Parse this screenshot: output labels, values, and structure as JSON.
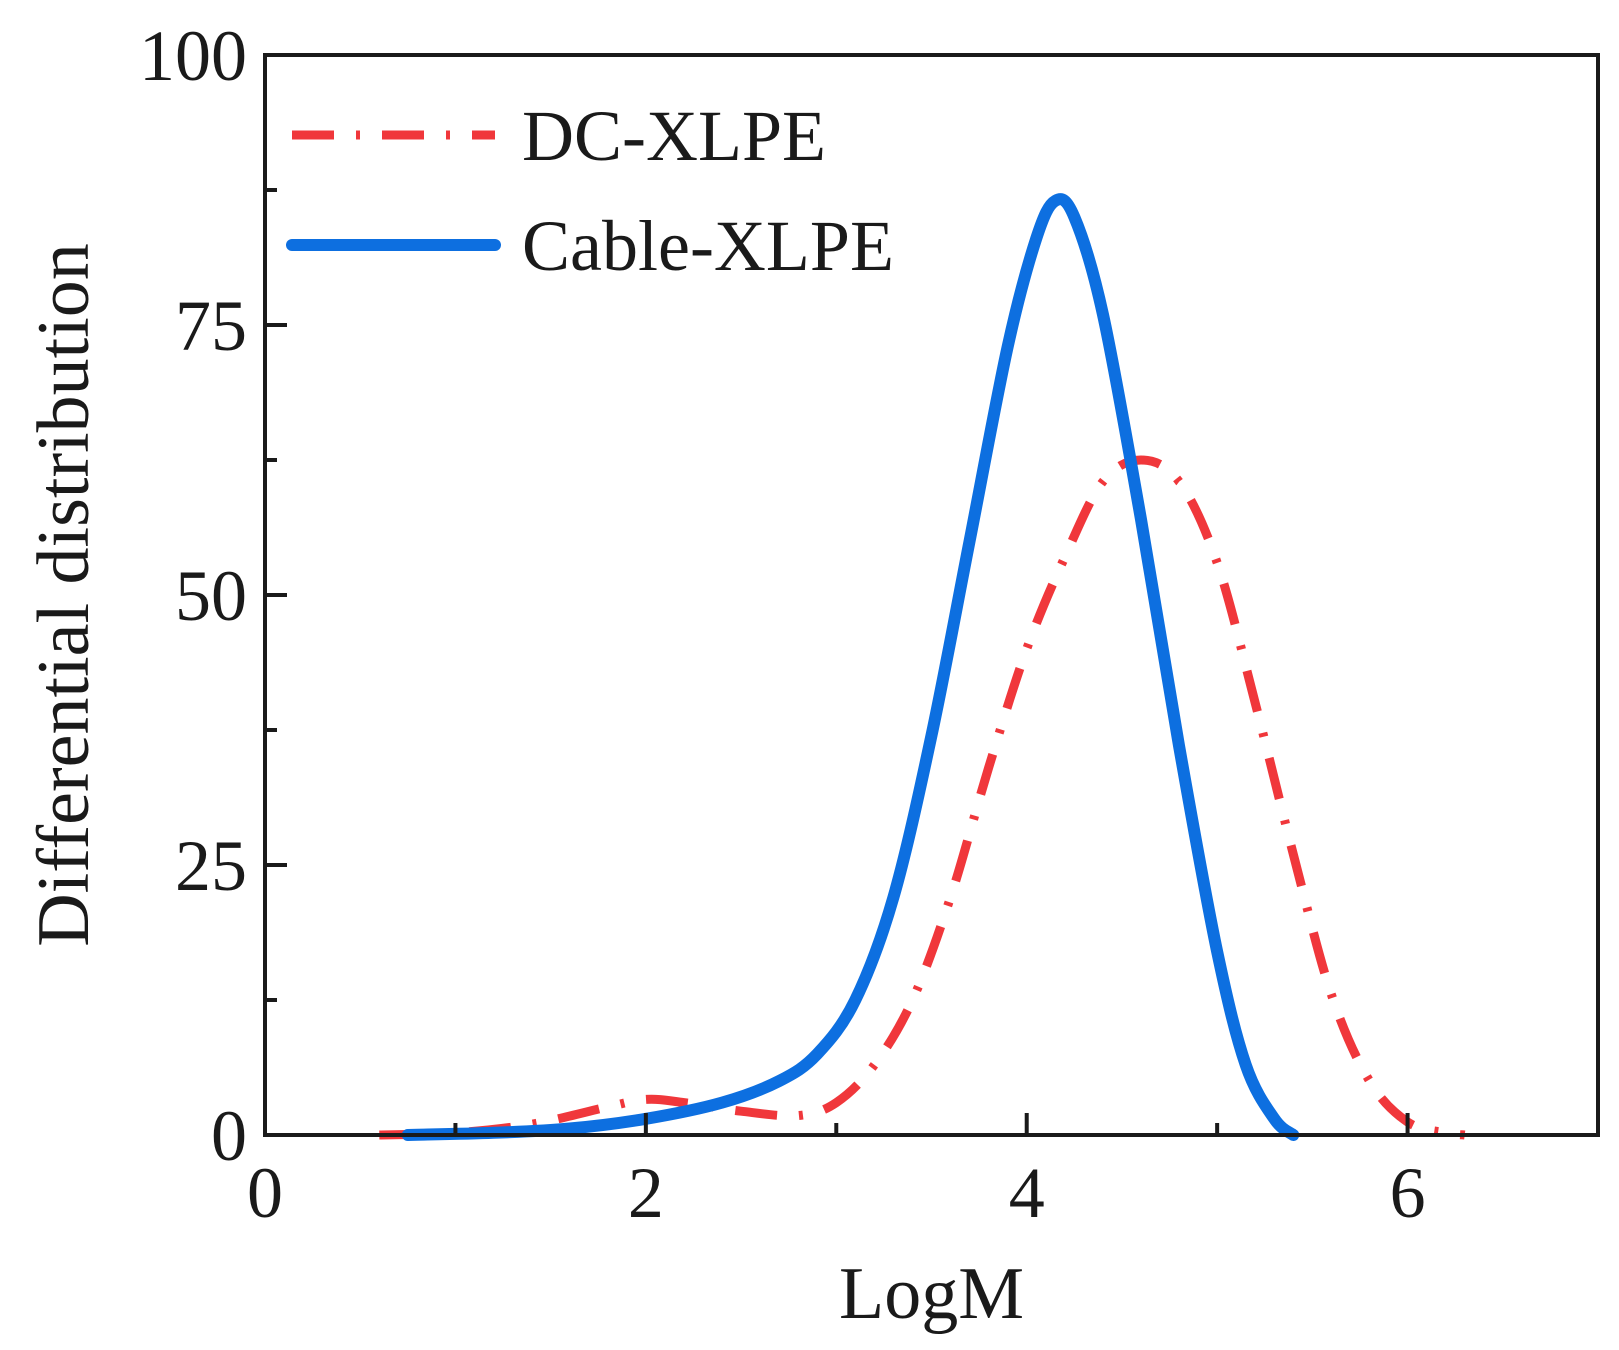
{
  "chart_data": {
    "type": "line",
    "title": "",
    "xlabel": "LogM",
    "ylabel": "Differential distribution",
    "xlim": [
      0,
      7
    ],
    "ylim": [
      0,
      100
    ],
    "xticks": [
      0,
      2,
      4,
      6
    ],
    "xtick_labels": [
      "0",
      "2",
      "4",
      "6"
    ],
    "yticks": [
      0,
      25,
      50,
      75,
      100
    ],
    "ytick_labels": [
      "0",
      "25",
      "50",
      "75",
      "100"
    ],
    "grid": false,
    "legend_position": "top-left",
    "series": [
      {
        "name": "DC-XLPE",
        "color": "#f0373b",
        "style": "dash-dot",
        "x": [
          0.6,
          1.0,
          1.4,
          1.8,
          2.0,
          2.2,
          2.5,
          2.8,
          3.0,
          3.2,
          3.4,
          3.6,
          3.8,
          4.0,
          4.2,
          4.4,
          4.6,
          4.8,
          5.0,
          5.2,
          5.4,
          5.6,
          5.8,
          6.0,
          6.2,
          6.3
        ],
        "values": [
          0.0,
          0.2,
          1.0,
          2.6,
          3.3,
          3.0,
          2.2,
          1.8,
          3.0,
          6.5,
          12.5,
          22.0,
          34.0,
          45.0,
          53.5,
          60.5,
          62.5,
          60.5,
          53.0,
          40.0,
          26.0,
          13.0,
          5.0,
          1.2,
          0.2,
          0.0
        ]
      },
      {
        "name": "Cable-XLPE",
        "color": "#0d6fe0",
        "style": "solid",
        "x": [
          0.75,
          1.2,
          1.6,
          2.0,
          2.4,
          2.7,
          2.9,
          3.1,
          3.3,
          3.5,
          3.7,
          3.9,
          4.05,
          4.15,
          4.25,
          4.4,
          4.6,
          4.8,
          5.0,
          5.15,
          5.3,
          5.4
        ],
        "values": [
          0.0,
          0.2,
          0.6,
          1.5,
          3.0,
          5.0,
          7.5,
          12.5,
          22.0,
          37.0,
          55.0,
          73.0,
          83.0,
          86.5,
          85.0,
          76.0,
          57.0,
          36.0,
          17.0,
          6.5,
          1.5,
          0.0
        ]
      }
    ]
  }
}
